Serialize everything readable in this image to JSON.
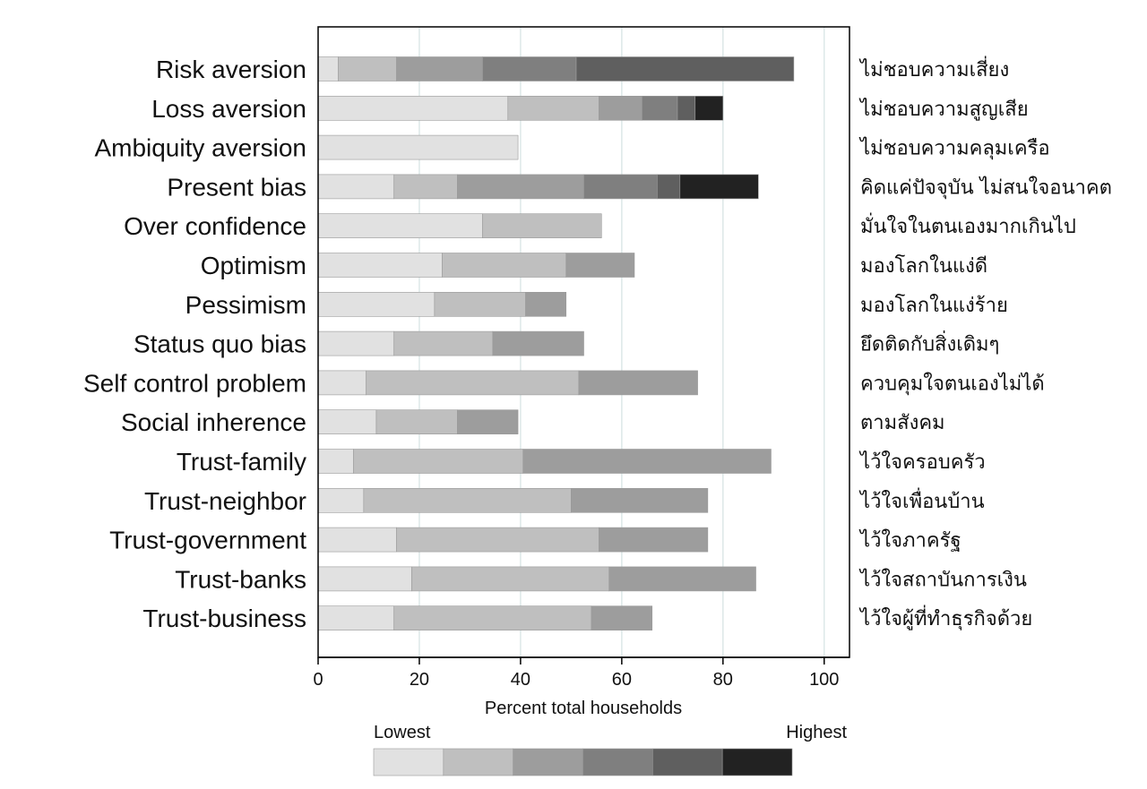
{
  "chart_data": {
    "type": "bar",
    "orientation": "horizontal",
    "stacked": true,
    "title": "",
    "xlabel": "Percent total households",
    "ylabel": "",
    "xlim": [
      0,
      105
    ],
    "xticks": [
      0,
      20,
      40,
      60,
      80,
      100
    ],
    "grid": true,
    "categories": [
      "Risk aversion",
      "Loss aversion",
      "Ambiquity aversion",
      "Present bias",
      "Over confidence",
      "Optimism",
      "Pessimism",
      "Status quo bias",
      "Self control problem",
      "Social inherence",
      "Trust-family",
      "Trust-neighbor",
      "Trust-government",
      "Trust-banks",
      "Trust-business"
    ],
    "thai_labels": [
      "ไม่ชอบความเสี่ยง",
      "ไม่ชอบความสูญเสีย",
      "ไม่ชอบความคลุมเครือ",
      "คิดแค่ปัจจุบัน ไม่สนใจอนาคต",
      "มั่นใจในตนเองมากเกินไป",
      "มองโลกในแง่ดี",
      "มองโลกในแง่ร้าย",
      "ยึดติดกับสิ่งเดิมๆ",
      "ควบคุมใจตนเองไม่ได้",
      "ตามสังคม",
      "ไว้ใจครอบครัว",
      "ไว้ใจเพื่อนบ้าน",
      "ไว้ใจภาครัฐ",
      "ไว้ใจสถาบันการเงิน",
      "ไว้ใจผู้ที่ทำธุรกิจด้วย"
    ],
    "segments": [
      [
        4,
        11.5,
        17,
        18.5,
        43
      ],
      [
        37.5,
        18,
        8.5,
        7,
        3.5,
        5.5
      ],
      [
        39.5
      ],
      [
        15,
        12.5,
        25,
        14.5,
        4.5,
        15.5
      ],
      [
        32.5,
        23.5
      ],
      [
        24.5,
        24.5,
        13.5
      ],
      [
        23,
        18,
        8
      ],
      [
        15,
        19.5,
        18
      ],
      [
        9.5,
        42,
        23.5
      ],
      [
        11.5,
        16,
        12
      ],
      [
        7,
        33.5,
        49
      ],
      [
        9,
        41,
        27
      ],
      [
        15.5,
        40,
        21.5
      ],
      [
        18.5,
        39,
        29
      ],
      [
        15,
        39,
        12
      ]
    ],
    "level_colors": [
      "#e1e1e1",
      "#bfbfbf",
      "#9d9d9d",
      "#7f7f7f",
      "#5f5f5f",
      "#222222"
    ],
    "legend": {
      "position": "bottom",
      "low_label": "Lowest",
      "high_label": "Highest"
    }
  }
}
